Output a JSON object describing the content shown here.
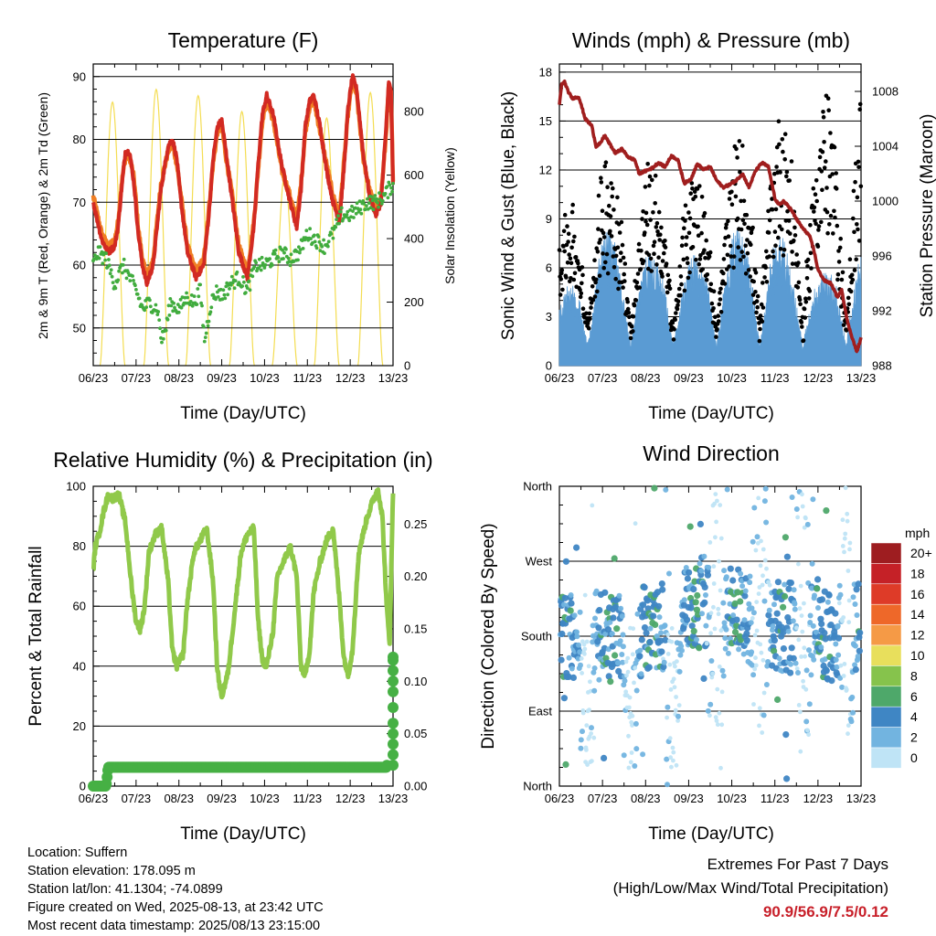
{
  "colors": {
    "temp2m": "#d22a22",
    "temp9m": "#f07e24",
    "dewpoint": "#41ac3e",
    "solar": "#f4dd52",
    "wind": "#5a9bd3",
    "gust": "#000000",
    "pressure": "#a01e1e",
    "rh": "#90c94a",
    "precip": "#46b044",
    "extremes_value": "#c8202a"
  },
  "x_ticks": [
    "06/23",
    "07/23",
    "08/23",
    "09/23",
    "10/23",
    "11/23",
    "12/23",
    "13/23"
  ],
  "chart_data": [
    {
      "id": "temperature",
      "type": "line",
      "title": "Temperature (F)",
      "xlabel": "Time (Day/UTC)",
      "ylabel": "2m & 9m T (Red, Orange) & 2m Td (Green)",
      "y2label": "Solar Insolation (Yellow)",
      "ylim": [
        44,
        92
      ],
      "yticks": [
        50,
        60,
        70,
        80,
        90
      ],
      "y2lim": [
        0,
        950
      ],
      "y2ticks": [
        0,
        200,
        400,
        600,
        800
      ],
      "xlim": [
        0,
        7
      ],
      "series": [
        {
          "key": "temp2m",
          "x": [
            0,
            0.2,
            0.35,
            0.5,
            0.58,
            0.66,
            0.75,
            0.85,
            0.95,
            1.05,
            1.15,
            1.25,
            1.4,
            1.58,
            1.75,
            1.85,
            1.95,
            2.05,
            2.2,
            2.4,
            2.58,
            2.7,
            2.8,
            2.9,
            3.0,
            3.1,
            3.25,
            3.4,
            3.6,
            3.75,
            3.85,
            3.95,
            4.05,
            4.2,
            4.4,
            4.6,
            4.75,
            4.85,
            4.95,
            5.05,
            5.15,
            5.3,
            5.45,
            5.6,
            5.75,
            5.85,
            5.95,
            6.05,
            6.15,
            6.3,
            6.45,
            6.6,
            6.72,
            6.82,
            6.9,
            6.95,
            7.0
          ],
          "y": [
            70,
            64,
            62,
            63,
            66,
            72,
            78,
            78,
            73,
            65,
            60,
            57,
            60,
            72,
            79,
            80,
            77,
            70,
            62,
            58,
            60,
            68,
            77,
            82,
            83,
            78,
            70,
            62,
            58,
            66,
            76,
            84,
            87,
            84,
            76,
            70,
            66,
            72,
            82,
            86,
            87,
            82,
            75,
            70,
            67,
            75,
            85,
            90,
            88,
            78,
            71,
            68,
            70,
            80,
            89,
            88,
            73
          ]
        },
        {
          "key": "dewpoint",
          "x": [
            0,
            0.1,
            0.3,
            0.5,
            0.7,
            0.85,
            1.0,
            1.15,
            1.3,
            1.5,
            1.6,
            1.7,
            1.8,
            2.0,
            2.2,
            2.35,
            2.5,
            2.6,
            2.75,
            2.9,
            3.0,
            3.2,
            3.4,
            3.6,
            3.8,
            4.0,
            4.2,
            4.4,
            4.6,
            4.8,
            5.0,
            5.2,
            5.4,
            5.6,
            5.8,
            6.0,
            6.2,
            6.4,
            6.6,
            6.8,
            7.0
          ],
          "y": [
            60,
            62,
            61,
            57,
            60,
            58,
            56,
            53,
            54,
            53,
            48,
            50,
            54,
            53,
            55,
            54,
            56,
            48,
            54,
            56,
            55,
            57,
            58,
            56,
            60,
            60,
            61,
            62,
            61,
            62,
            65,
            64,
            63,
            65,
            68,
            68,
            69,
            70,
            70,
            71,
            73
          ]
        },
        {
          "key": "solar_peaks",
          "x": [
            0.45,
            1.47,
            2.45,
            3.47,
            4.47,
            5.45,
            6.47
          ],
          "y": [
            830,
            870,
            850,
            800,
            600,
            780,
            860
          ]
        }
      ]
    },
    {
      "id": "winds",
      "type": "scatter",
      "title": "Winds (mph) & Pressure (mb)",
      "xlabel": "Time (Day/UTC)",
      "ylabel": "Sonic Wind & Gust (Blue, Black)",
      "y2label": "Station Pressure (Maroon)",
      "ylim": [
        0,
        18.5
      ],
      "yticks": [
        0,
        3,
        6,
        9,
        12,
        15,
        18
      ],
      "y2lim": [
        988,
        1010
      ],
      "y2ticks": [
        988,
        992,
        996,
        1000,
        1004,
        1008
      ],
      "xlim": [
        0,
        7
      ],
      "series": [
        {
          "key": "pressure",
          "x": [
            0,
            0.05,
            0.12,
            0.2,
            0.3,
            0.45,
            0.6,
            0.75,
            0.85,
            0.95,
            1.05,
            1.2,
            1.3,
            1.45,
            1.6,
            1.75,
            1.85,
            2.0,
            2.15,
            2.3,
            2.45,
            2.6,
            2.75,
            2.9,
            3.05,
            3.2,
            3.35,
            3.5,
            3.65,
            3.8,
            3.95,
            4.1,
            4.25,
            4.4,
            4.55,
            4.7,
            4.85,
            5.0,
            5.1,
            5.2,
            5.35,
            5.5,
            5.65,
            5.8,
            5.9,
            6.0,
            6.15,
            6.3,
            6.45,
            6.55,
            6.7,
            6.8,
            6.9,
            7.0
          ],
          "y": [
            1007,
            1008.5,
            1008.7,
            1008,
            1007.5,
            1007.6,
            1006,
            1005.5,
            1004,
            1004.2,
            1004.8,
            1004,
            1003.5,
            1003.8,
            1003.2,
            1003,
            1002,
            1002.2,
            1002.4,
            1002.8,
            1002.5,
            1003.3,
            1003,
            1001.3,
            1001.6,
            1002.7,
            1002.3,
            1002.5,
            1001.5,
            1001,
            1001.2,
            1001.5,
            1002,
            1001,
            1002.2,
            1002.8,
            1002.5,
            1000.2,
            999.7,
            1000,
            999.5,
            998.7,
            998,
            997.5,
            996.5,
            995,
            994.2,
            994,
            993,
            993.5,
            991,
            990,
            989,
            990
          ]
        },
        {
          "key": "wind_diurnal_peaks",
          "x": [
            0.05,
            0.95,
            1.95,
            2.95,
            3.95,
            4.95,
            5.95,
            6.9
          ],
          "y": [
            3,
            7.5,
            6,
            5.5,
            7.5,
            7.2,
            4.5,
            6.5
          ]
        },
        {
          "key": "gust_diurnal_peaks",
          "x": [
            0.05,
            0.95,
            1.95,
            2.95,
            3.95,
            4.95,
            5.95,
            6.9
          ],
          "y": [
            8,
            12,
            11,
            11,
            12,
            14.5,
            15.5,
            17.5
          ]
        }
      ]
    },
    {
      "id": "humidity",
      "type": "line",
      "title": "Relative Humidity (%) & Precipitation (in)",
      "xlabel": "Time (Day/UTC)",
      "ylabel": "Percent & Total Rainfall",
      "ylim": [
        0,
        100
      ],
      "yticks": [
        0,
        20,
        40,
        60,
        80,
        100
      ],
      "y2lim": [
        0,
        0.286
      ],
      "y2ticks": [
        0.0,
        0.05,
        0.1,
        0.15,
        0.2,
        0.25
      ],
      "xlim": [
        0,
        7
      ],
      "series": [
        {
          "key": "rh",
          "x": [
            0,
            0.05,
            0.15,
            0.25,
            0.35,
            0.45,
            0.6,
            0.75,
            0.9,
            1.0,
            1.1,
            1.2,
            1.3,
            1.45,
            1.6,
            1.75,
            1.85,
            1.95,
            2.1,
            2.2,
            2.35,
            2.5,
            2.65,
            2.8,
            2.9,
            3.0,
            3.15,
            3.3,
            3.45,
            3.6,
            3.75,
            3.85,
            3.95,
            4.05,
            4.2,
            4.3,
            4.45,
            4.6,
            4.75,
            4.85,
            4.95,
            5.05,
            5.15,
            5.3,
            5.45,
            5.6,
            5.75,
            5.85,
            5.95,
            6.05,
            6.2,
            6.4,
            6.55,
            6.65,
            6.75,
            6.85,
            6.92,
            7.0
          ],
          "y": [
            72,
            80,
            85,
            92,
            97,
            96,
            97,
            88,
            66,
            55,
            52,
            60,
            78,
            84,
            86,
            68,
            45,
            40,
            44,
            62,
            78,
            82,
            86,
            68,
            38,
            30,
            38,
            58,
            78,
            84,
            86,
            55,
            42,
            40,
            52,
            70,
            75,
            80,
            70,
            40,
            37,
            45,
            65,
            75,
            82,
            86,
            62,
            43,
            37,
            45,
            78,
            90,
            96,
            99,
            90,
            60,
            48,
            98
          ]
        },
        {
          "key": "precip",
          "x": [
            0,
            0.3,
            0.35,
            6.85,
            6.88,
            6.9,
            6.92,
            6.94,
            6.96,
            6.97,
            6.98,
            7.0
          ],
          "y": [
            0,
            0,
            0.018,
            0.018,
            0.025,
            0.035,
            0.05,
            0.07,
            0.09,
            0.1,
            0.12,
            0.123
          ]
        }
      ]
    },
    {
      "id": "direction",
      "type": "scatter",
      "title": "Wind Direction",
      "xlabel": "Time (Day/UTC)",
      "ylabel": "Direction (Colored By Speed)",
      "ylim": [
        0,
        360
      ],
      "ytick_labels": [
        "North",
        "East",
        "South",
        "West",
        "North"
      ],
      "xlim": [
        0,
        7
      ],
      "legend_title": "mph",
      "legend_labels": [
        "20+",
        "18",
        "16",
        "14",
        "12",
        "10",
        "8",
        "6",
        "4",
        "2",
        "0"
      ],
      "legend_colors": [
        "#9e1d20",
        "#c52127",
        "#de3b28",
        "#ee6829",
        "#f59a46",
        "#e8df5c",
        "#86c34c",
        "#4ea86a",
        "#3f86c4",
        "#72b4e0",
        "#bfe4f6"
      ],
      "series": [
        {
          "key": "direction_clusters",
          "x": [
            0.45,
            1.45,
            2.45,
            3.45,
            4.45,
            5.45,
            6.45,
            6.85
          ],
          "y": [
            180,
            180,
            195,
            225,
            200,
            190,
            180,
            190
          ]
        }
      ]
    }
  ],
  "info": {
    "location": "Location: Suffern",
    "elevation": "Station elevation: 178.095 m",
    "latlon": "Station lat/lon: 41.1304; -74.0899",
    "created": "Figure created on Wed, 2025-08-13, at 23:42 UTC",
    "recent": "Most recent data timestamp: 2025/08/13 23:15:00"
  },
  "extremes": {
    "heading": "Extremes For Past 7 Days",
    "subheading": "(High/Low/Max Wind/Total Precipitation)",
    "values": "90.9/56.9/7.5/0.12"
  }
}
